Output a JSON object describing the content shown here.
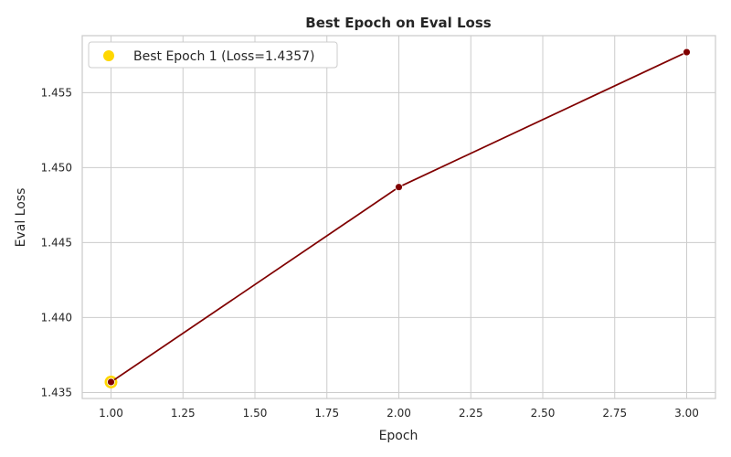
{
  "chart_data": {
    "type": "line",
    "title": "Best Epoch on Eval Loss",
    "xlabel": "Epoch",
    "ylabel": "Eval Loss",
    "xlim": [
      0.9,
      3.1
    ],
    "ylim": [
      1.4346,
      1.4588
    ],
    "x_ticks": [
      1.0,
      1.25,
      1.5,
      1.75,
      2.0,
      2.25,
      2.5,
      2.75,
      3.0
    ],
    "x_tick_labels": [
      "1.00",
      "1.25",
      "1.50",
      "1.75",
      "2.00",
      "2.25",
      "2.50",
      "2.75",
      "3.00"
    ],
    "y_ticks": [
      1.435,
      1.44,
      1.445,
      1.45,
      1.455
    ],
    "y_tick_labels": [
      "1.435",
      "1.440",
      "1.445",
      "1.450",
      "1.455"
    ],
    "grid": true,
    "legend_position": "top-left",
    "series": [
      {
        "x": [
          1,
          2,
          3
        ],
        "values": [
          1.4357,
          1.4487,
          1.4577
        ],
        "color": "#800000"
      }
    ],
    "highlight": {
      "name": "Best Epoch 1 (Loss=1.4357)",
      "x": 1,
      "y": 1.4357,
      "color": "#ffd700"
    }
  }
}
